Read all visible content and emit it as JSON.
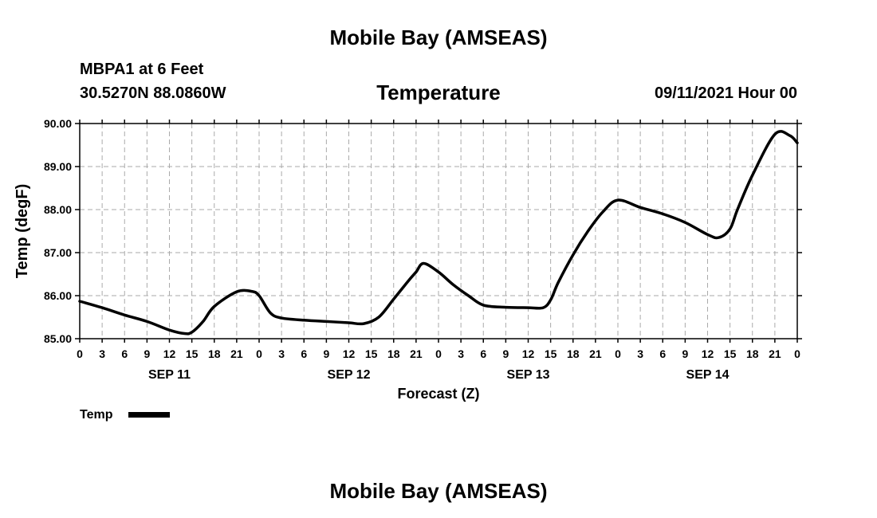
{
  "header": {
    "title": "Mobile Bay (AMSEAS)",
    "station": "MBPA1 at 6 Feet",
    "location": "30.5270N  88.0860W",
    "variable": "Temperature",
    "datetime": "09/11/2021 Hour 00"
  },
  "footer": {
    "title": "Mobile Bay (AMSEAS)"
  },
  "chart_data": {
    "type": "line",
    "title": "Temperature",
    "xlabel": "Forecast (Z)",
    "ylabel": "Temp (degF)",
    "ylim": [
      85.0,
      90.0
    ],
    "xlim": [
      0,
      96
    ],
    "y_ticks": [
      "85.00",
      "86.00",
      "87.00",
      "88.00",
      "89.00",
      "90.00"
    ],
    "y_tick_values": [
      85,
      86,
      87,
      88,
      89,
      90
    ],
    "x_tick_labels": [
      "0",
      "3",
      "6",
      "9",
      "12",
      "15",
      "18",
      "21",
      "0",
      "3",
      "6",
      "9",
      "12",
      "15",
      "18",
      "21",
      "0",
      "3",
      "6",
      "9",
      "12",
      "15",
      "18",
      "21",
      "0",
      "3",
      "6",
      "9",
      "12",
      "15",
      "18",
      "21",
      "0"
    ],
    "x_tick_hours": [
      0,
      3,
      6,
      9,
      12,
      15,
      18,
      21,
      24,
      27,
      30,
      33,
      36,
      39,
      42,
      45,
      48,
      51,
      54,
      57,
      60,
      63,
      66,
      69,
      72,
      75,
      78,
      81,
      84,
      87,
      90,
      93,
      96
    ],
    "date_labels": [
      {
        "label": "SEP 11",
        "hour": 12
      },
      {
        "label": "SEP 12",
        "hour": 36
      },
      {
        "label": "SEP 13",
        "hour": 60
      },
      {
        "label": "SEP 14",
        "hour": 84
      }
    ],
    "grid": true,
    "legend": [
      {
        "name": "Temp",
        "position": "bottom-left"
      }
    ],
    "series": [
      {
        "name": "Temp",
        "x": [
          0,
          3,
          6,
          9,
          12,
          14,
          15,
          16.5,
          18,
          21,
          23,
          24,
          25.5,
          27,
          30,
          33,
          36,
          38,
          40,
          42,
          44,
          45,
          46,
          48,
          50,
          52,
          54,
          57,
          60,
          62,
          63,
          64,
          66,
          68,
          70,
          72,
          75,
          78,
          81,
          84,
          85.5,
          87,
          88,
          90,
          93,
          95,
          96
        ],
        "values": [
          85.87,
          85.72,
          85.55,
          85.4,
          85.2,
          85.12,
          85.15,
          85.4,
          85.75,
          86.09,
          86.1,
          86.0,
          85.6,
          85.48,
          85.43,
          85.4,
          85.37,
          85.35,
          85.5,
          85.92,
          86.35,
          86.55,
          86.75,
          86.55,
          86.25,
          86.0,
          85.78,
          85.73,
          85.72,
          85.72,
          85.9,
          86.3,
          86.95,
          87.5,
          87.95,
          88.22,
          88.05,
          87.9,
          87.7,
          87.42,
          87.35,
          87.55,
          88.0,
          88.8,
          89.75,
          89.72,
          89.55
        ]
      }
    ]
  }
}
